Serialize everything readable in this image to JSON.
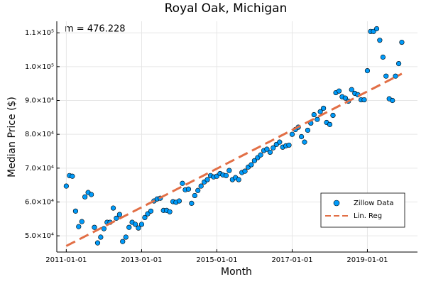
{
  "chart_data": {
    "type": "scatter",
    "title": "Royal Oak, Michigan",
    "x_label": "Month",
    "y_label": "Median Price ($)",
    "annotation": "m = 476.228",
    "x": [
      "2011-01-01",
      "2011-02-01",
      "2011-03-01",
      "2011-04-01",
      "2011-05-01",
      "2011-06-01",
      "2011-07-01",
      "2011-08-01",
      "2011-09-01",
      "2011-10-01",
      "2011-11-01",
      "2011-12-01",
      "2012-01-01",
      "2012-02-01",
      "2012-03-01",
      "2012-04-01",
      "2012-05-01",
      "2012-06-01",
      "2012-07-01",
      "2012-08-01",
      "2012-09-01",
      "2012-10-01",
      "2012-11-01",
      "2012-12-01",
      "2013-01-01",
      "2013-02-01",
      "2013-03-01",
      "2013-04-01",
      "2013-05-01",
      "2013-06-01",
      "2013-07-01",
      "2013-08-01",
      "2013-09-01",
      "2013-10-01",
      "2013-11-01",
      "2013-12-01",
      "2014-01-01",
      "2014-02-01",
      "2014-03-01",
      "2014-04-01",
      "2014-05-01",
      "2014-06-01",
      "2014-07-01",
      "2014-08-01",
      "2014-09-01",
      "2014-10-01",
      "2014-11-01",
      "2014-12-01",
      "2015-01-01",
      "2015-02-01",
      "2015-03-01",
      "2015-04-01",
      "2015-05-01",
      "2015-06-01",
      "2015-07-01",
      "2015-08-01",
      "2015-09-01",
      "2015-10-01",
      "2015-11-01",
      "2015-12-01",
      "2016-01-01",
      "2016-02-01",
      "2016-03-01",
      "2016-04-01",
      "2016-05-01",
      "2016-06-01",
      "2016-07-01",
      "2016-08-01",
      "2016-09-01",
      "2016-10-01",
      "2016-11-01",
      "2016-12-01",
      "2017-01-01",
      "2017-02-01",
      "2017-03-01",
      "2017-04-01",
      "2017-05-01",
      "2017-06-01",
      "2017-07-01",
      "2017-08-01",
      "2017-09-01",
      "2017-10-01",
      "2017-11-01",
      "2017-12-01",
      "2018-01-01",
      "2018-02-01",
      "2018-03-01",
      "2018-04-01",
      "2018-05-01",
      "2018-06-01",
      "2018-07-01",
      "2018-08-01",
      "2018-09-01",
      "2018-10-01",
      "2018-11-01",
      "2018-12-01",
      "2019-01-01",
      "2019-02-01",
      "2019-03-01",
      "2019-04-01",
      "2019-05-01",
      "2019-06-01",
      "2019-07-01",
      "2019-08-01",
      "2019-09-01",
      "2019-10-01",
      "2019-11-01",
      "2019-12-01"
    ],
    "series": [
      {
        "name": "Zillow Data",
        "color": "#009af9",
        "values": [
          64700,
          67800,
          67600,
          57300,
          52700,
          54200,
          61500,
          62800,
          62200,
          52500,
          47900,
          49600,
          52100,
          54000,
          54000,
          58200,
          55200,
          56300,
          48300,
          49600,
          52500,
          54000,
          53400,
          52300,
          53400,
          55400,
          56500,
          57300,
          60300,
          60900,
          61100,
          57500,
          57500,
          57100,
          60100,
          59900,
          60300,
          65500,
          63600,
          63800,
          59600,
          61900,
          63400,
          64700,
          65900,
          66600,
          67800,
          67400,
          67600,
          68400,
          68000,
          67800,
          69300,
          66600,
          67200,
          66600,
          68700,
          69100,
          70300,
          71000,
          72200,
          73100,
          73900,
          75200,
          75600,
          74700,
          76000,
          77000,
          77700,
          76200,
          76600,
          76800,
          80000,
          81400,
          82100,
          79300,
          77700,
          81200,
          83300,
          85800,
          84400,
          86700,
          87700,
          83500,
          82900,
          85600,
          92300,
          92800,
          91100,
          90700,
          89800,
          93200,
          92100,
          91700,
          90200,
          90200,
          98800,
          110400,
          110400,
          111200,
          107800,
          102800,
          97200,
          90500,
          90000,
          97200,
          100900,
          107200
        ]
      },
      {
        "name": "Lin. Reg",
        "color": "#e26f46",
        "type": "line",
        "x": [
          "2011-01-01",
          "2019-12-01"
        ],
        "values": [
          47000,
          97900
        ]
      }
    ],
    "xlim": [
      "2010-10-01",
      "2020-05-01"
    ],
    "xticks": [
      "2011-01-01",
      "2013-01-01",
      "2015-01-01",
      "2017-01-01",
      "2019-01-01"
    ],
    "ylim": [
      45200,
      113400
    ],
    "yticks": [
      {
        "value": 50000,
        "label": "5.0×10⁴"
      },
      {
        "value": 60000,
        "label": "6.0×10⁴"
      },
      {
        "value": 70000,
        "label": "7.0×10⁴"
      },
      {
        "value": 80000,
        "label": "8.0×10⁴"
      },
      {
        "value": 90000,
        "label": "9.0×10⁴"
      },
      {
        "value": 100000,
        "label": "1.0×10⁵"
      },
      {
        "value": 110000,
        "label": "1.1×10⁵"
      }
    ],
    "grid": true,
    "legend": "bottom-right"
  }
}
